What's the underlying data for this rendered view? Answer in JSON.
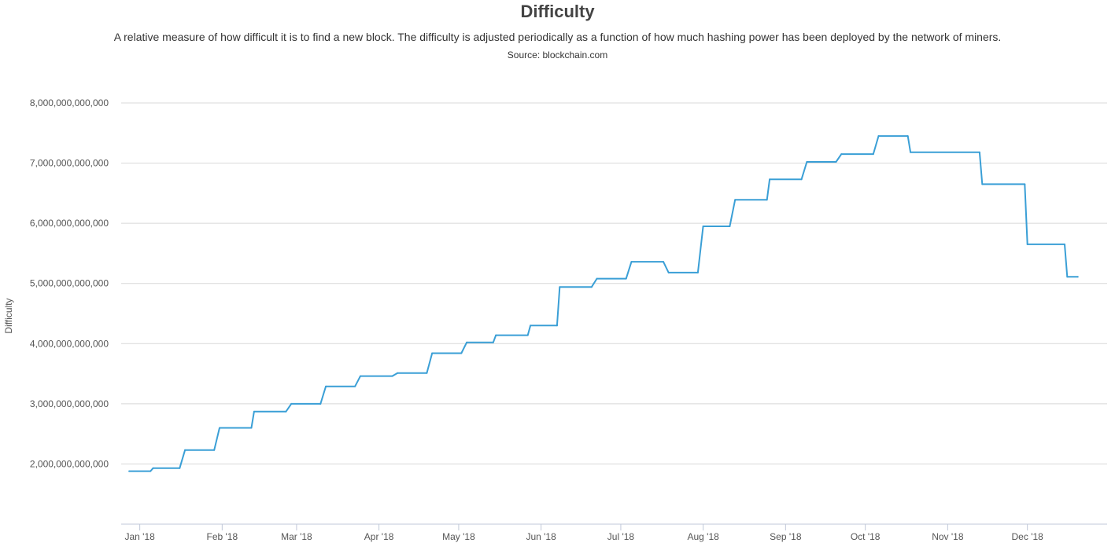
{
  "chart_data": {
    "type": "line",
    "title": "Difficulty",
    "subtitle": "A relative measure of how difficult it is to find a new block. The difficulty is adjusted periodically as a function of how much hashing power has been deployed by the network of miners.",
    "source": "Source: blockchain.com",
    "xlabel": "",
    "ylabel": "Difficulty",
    "ylim": [
      1000000000000,
      8000000000000
    ],
    "y_ticks": [
      {
        "value": 2000000000000,
        "label": "2,000,000,000,000"
      },
      {
        "value": 3000000000000,
        "label": "3,000,000,000,000"
      },
      {
        "value": 4000000000000,
        "label": "4,000,000,000,000"
      },
      {
        "value": 5000000000000,
        "label": "5,000,000,000,000"
      },
      {
        "value": 6000000000000,
        "label": "6,000,000,000,000"
      },
      {
        "value": 7000000000000,
        "label": "7,000,000,000,000"
      },
      {
        "value": 8000000000000,
        "label": "8,000,000,000,000"
      }
    ],
    "xlim": [
      "2017-12-25",
      "2018-12-31"
    ],
    "x_ticks": [
      {
        "value": "2018-01-01",
        "label": "Jan '18"
      },
      {
        "value": "2018-02-01",
        "label": "Feb '18"
      },
      {
        "value": "2018-03-01",
        "label": "Mar '18"
      },
      {
        "value": "2018-04-01",
        "label": "Apr '18"
      },
      {
        "value": "2018-05-01",
        "label": "May '18"
      },
      {
        "value": "2018-06-01",
        "label": "Jun '18"
      },
      {
        "value": "2018-07-01",
        "label": "Jul '18"
      },
      {
        "value": "2018-08-01",
        "label": "Aug '18"
      },
      {
        "value": "2018-09-01",
        "label": "Sep '18"
      },
      {
        "value": "2018-10-01",
        "label": "Oct '18"
      },
      {
        "value": "2018-11-01",
        "label": "Nov '18"
      },
      {
        "value": "2018-12-01",
        "label": "Dec '18"
      }
    ],
    "grid": true,
    "legend": "none",
    "line_color": "#3a9fd6",
    "series": [
      {
        "points": [
          [
            "2017-12-28",
            1880000000000
          ],
          [
            "2018-01-05",
            1880000000000
          ],
          [
            "2018-01-06",
            1930000000000
          ],
          [
            "2018-01-16",
            1930000000000
          ],
          [
            "2018-01-18",
            2230000000000
          ],
          [
            "2018-01-29",
            2230000000000
          ],
          [
            "2018-01-31",
            2600000000000
          ],
          [
            "2018-02-12",
            2600000000000
          ],
          [
            "2018-02-13",
            2870000000000
          ],
          [
            "2018-02-25",
            2870000000000
          ],
          [
            "2018-02-27",
            3000000000000
          ],
          [
            "2018-03-10",
            3000000000000
          ],
          [
            "2018-03-12",
            3290000000000
          ],
          [
            "2018-03-23",
            3290000000000
          ],
          [
            "2018-03-25",
            3460000000000
          ],
          [
            "2018-04-06",
            3460000000000
          ],
          [
            "2018-04-08",
            3510000000000
          ],
          [
            "2018-04-19",
            3510000000000
          ],
          [
            "2018-04-21",
            3840000000000
          ],
          [
            "2018-05-02",
            3840000000000
          ],
          [
            "2018-05-04",
            4020000000000
          ],
          [
            "2018-05-14",
            4020000000000
          ],
          [
            "2018-05-15",
            4140000000000
          ],
          [
            "2018-05-27",
            4140000000000
          ],
          [
            "2018-05-28",
            4300000000000
          ],
          [
            "2018-06-07",
            4300000000000
          ],
          [
            "2018-06-08",
            4940000000000
          ],
          [
            "2018-06-20",
            4940000000000
          ],
          [
            "2018-06-22",
            5080000000000
          ],
          [
            "2018-07-03",
            5080000000000
          ],
          [
            "2018-07-05",
            5360000000000
          ],
          [
            "2018-07-17",
            5360000000000
          ],
          [
            "2018-07-19",
            5180000000000
          ],
          [
            "2018-07-30",
            5180000000000
          ],
          [
            "2018-08-01",
            5950000000000
          ],
          [
            "2018-08-11",
            5950000000000
          ],
          [
            "2018-08-13",
            6390000000000
          ],
          [
            "2018-08-25",
            6390000000000
          ],
          [
            "2018-08-26",
            6730000000000
          ],
          [
            "2018-09-07",
            6730000000000
          ],
          [
            "2018-09-09",
            7020000000000
          ],
          [
            "2018-09-20",
            7020000000000
          ],
          [
            "2018-09-22",
            7150000000000
          ],
          [
            "2018-10-04",
            7150000000000
          ],
          [
            "2018-10-06",
            7450000000000
          ],
          [
            "2018-10-17",
            7450000000000
          ],
          [
            "2018-10-18",
            7180000000000
          ],
          [
            "2018-11-13",
            7180000000000
          ],
          [
            "2018-11-14",
            6650000000000
          ],
          [
            "2018-11-30",
            6650000000000
          ],
          [
            "2018-12-01",
            5650000000000
          ],
          [
            "2018-12-15",
            5650000000000
          ],
          [
            "2018-12-16",
            5110000000000
          ],
          [
            "2018-12-20",
            5110000000000
          ]
        ]
      }
    ]
  }
}
